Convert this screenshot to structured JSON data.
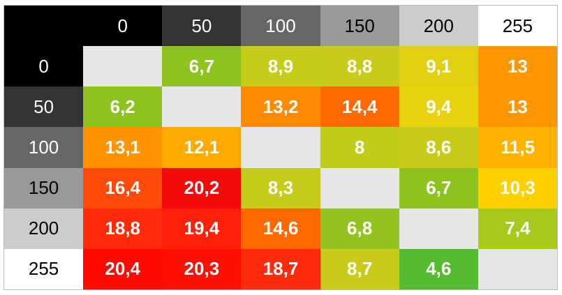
{
  "table": {
    "corner_color": "#000000",
    "columns": [
      "0",
      "50",
      "100",
      "150",
      "200",
      "255"
    ],
    "header_colors": [
      "#000000",
      "#333333",
      "#666666",
      "#999999",
      "#cccccc",
      "#ffffff"
    ],
    "rows": [
      {
        "label": "0",
        "cells": [
          null,
          "6,7",
          "8,9",
          "8,8",
          "9,1",
          "13"
        ],
        "colors": [
          "#e6e6e6",
          "#8dc21f",
          "#c6cc1a",
          "#c8cb1a",
          "#e0d010",
          "#ff9500"
        ]
      },
      {
        "label": "50",
        "cells": [
          "6,2",
          null,
          "13,2",
          "14,4",
          "9,4",
          "13"
        ],
        "colors": [
          "#8dc21f",
          "#e6e6e6",
          "#ff8a00",
          "#ff6a00",
          "#e8d20e",
          "#ff9500"
        ]
      },
      {
        "label": "100",
        "cells": [
          "13,1",
          "12,1",
          null,
          "8",
          "8,6",
          "11,5"
        ],
        "colors": [
          "#ff9300",
          "#ffaa00",
          "#e6e6e6",
          "#c0cc1a",
          "#c8cb1a",
          "#ffb300"
        ]
      },
      {
        "label": "150",
        "cells": [
          "16,4",
          "20,2",
          "8,3",
          null,
          "6,7",
          "10,3"
        ],
        "colors": [
          "#ff4a0a",
          "#f50a0a",
          "#c4cb1a",
          "#e6e6e6",
          "#8dc21f",
          "#ffd000"
        ]
      },
      {
        "label": "200",
        "cells": [
          "18,8",
          "19,4",
          "14,6",
          "6,8",
          null,
          "7,4"
        ],
        "colors": [
          "#ff2a0a",
          "#ff200a",
          "#ff6a00",
          "#94c31f",
          "#e6e6e6",
          "#a8c81c"
        ]
      },
      {
        "label": "255",
        "cells": [
          "20,4",
          "20,3",
          "18,7",
          "8,7",
          "4,6",
          null
        ],
        "colors": [
          "#ff0a00",
          "#ff1000",
          "#ff2a0a",
          "#c8cb1a",
          "#55bb33",
          "#e6e6e6"
        ]
      }
    ]
  }
}
